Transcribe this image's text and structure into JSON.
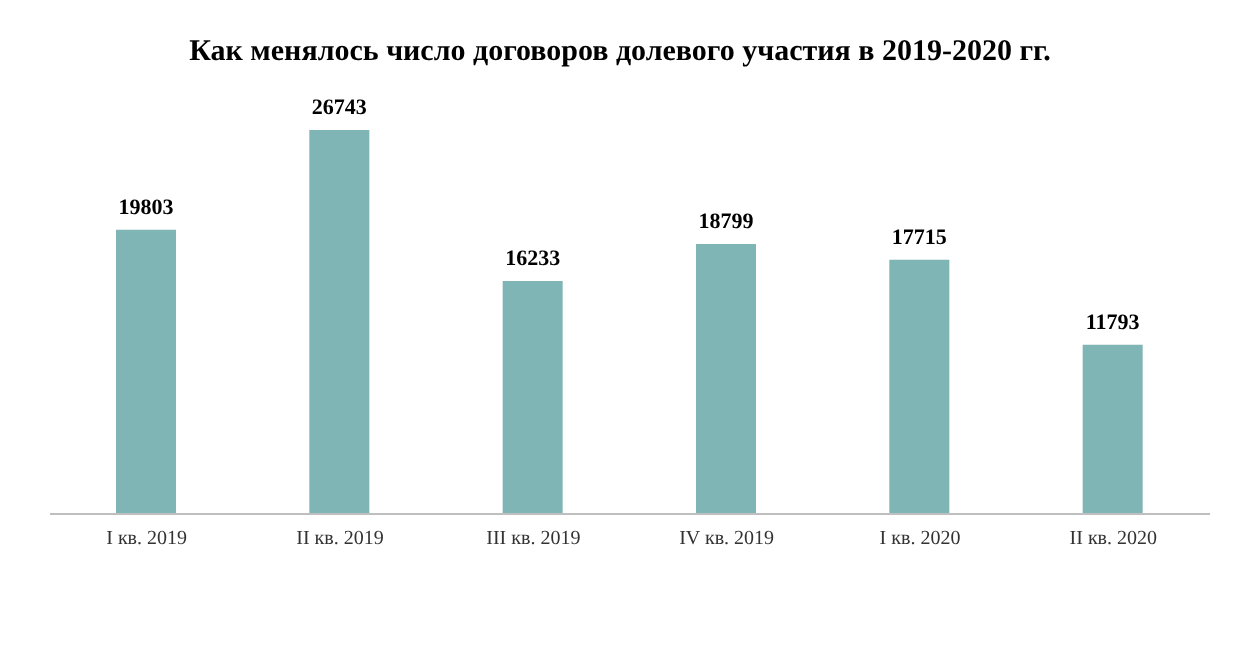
{
  "chart_data": {
    "type": "bar",
    "title": "Как менялось число договоров долевого участия в 2019-2020 гг.",
    "categories": [
      "I кв. 2019",
      "II кв. 2019",
      "III кв. 2019",
      "IV кв. 2019",
      "I кв. 2020",
      "II кв. 2020"
    ],
    "values": [
      19803,
      26743,
      16233,
      18799,
      17715,
      11793
    ],
    "color": "#7fb5b5",
    "data_labels": true
  }
}
